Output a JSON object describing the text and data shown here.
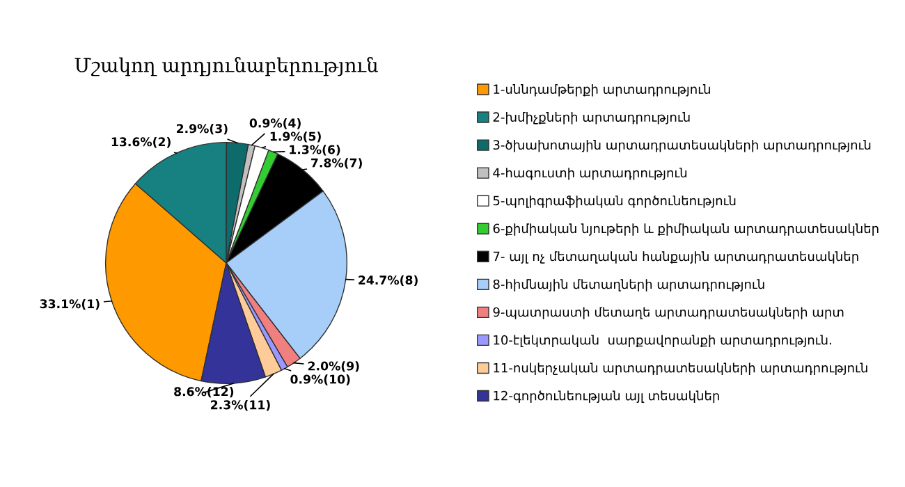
{
  "chart_data": {
    "type": "pie",
    "title": "Մշակող արդյունաբերություն",
    "categories": [
      "1-սննդամթերքի արտադրություն",
      "2-խմիչքների արտադրություն",
      "3-ծխախոտային արտադրատեսակների արտադրություն",
      "4-հագուստի արտադրություն",
      "5-պոլիգրաֆիական գործունեություն",
      "6-քիմիական նյութերի և քիմիական արտադրատեսակներ",
      "7- այլ ոչ մետաղական հանքային արտադրատեսակներ",
      "8-հիմնային մետաղների արտադրություն",
      "9-պատրաստի մետաղե արտադրատեսակների արտ",
      "10-էլեկտրական  սարքավորանքի արտադրություն.",
      "11-ոսկերչական արտադրատեսակների արտադրություն",
      "12-գործունեության այլ տեսակներ"
    ],
    "values": [
      33.1,
      13.6,
      2.9,
      0.9,
      1.9,
      1.3,
      7.8,
      24.7,
      2.0,
      0.9,
      2.3,
      8.6
    ],
    "value_labels": [
      "33.1%(1)",
      "13.6%(2)",
      "2.9%(3)",
      "0.9%(4)",
      "1.9%(5)",
      "1.3%(6)",
      "7.8%(7)",
      "24.7%(8)",
      "2.0%(9)",
      "0.9%(10)",
      "2.3%(11)",
      "8.6%(12)"
    ],
    "colors": [
      "#ff9900",
      "#178080",
      "#0d6b6b",
      "#c0c0c0",
      "#ffffff",
      "#33cc33",
      "#000000",
      "#a6cef8",
      "#f08080",
      "#9999ff",
      "#ffcc99",
      "#333399"
    ],
    "legend": "right"
  }
}
